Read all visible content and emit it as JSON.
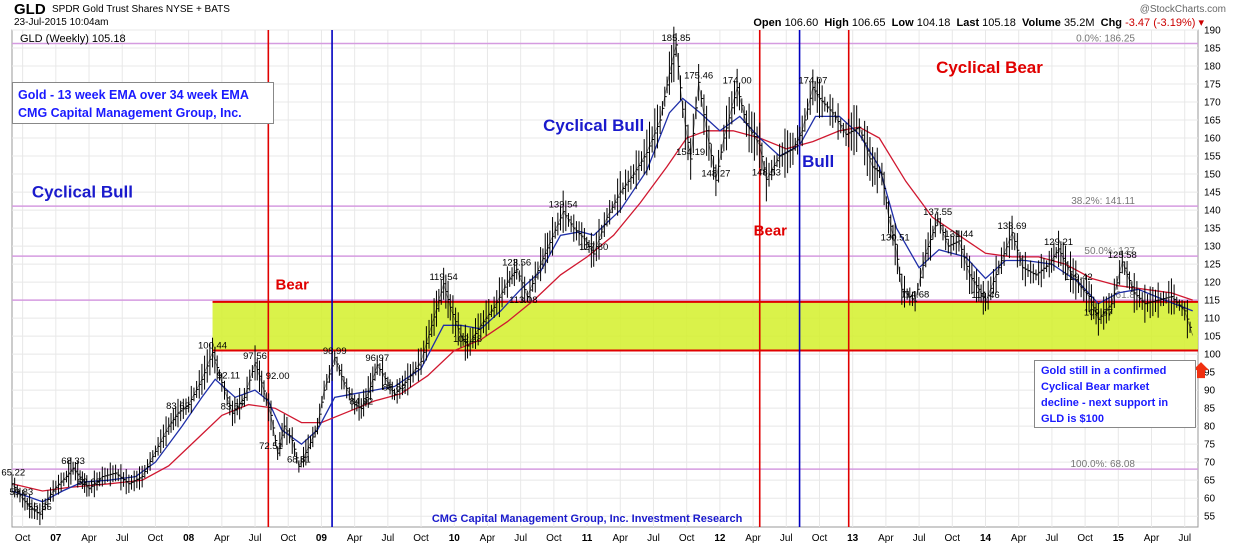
{
  "header": {
    "ticker": "GLD",
    "company": "SPDR Gold Trust Shares  NYSE + BATS",
    "datetime": "23-Jul-2015 10:04am",
    "watermark": "@StockCharts.com",
    "open_label": "Open",
    "open": "106.60",
    "high_label": "High",
    "high": "106.65",
    "low_label": "Low",
    "low": "104.18",
    "last_label": "Last",
    "last": "105.18",
    "volume_label": "Volume",
    "volume": "35.2M",
    "chg_label": "Chg",
    "chg": "-3.47 (-3.19%)"
  },
  "chart_data": {
    "type": "line",
    "title": "GLD (Weekly) 105.18",
    "ylim": [
      52,
      190
    ],
    "yticks": [
      55,
      60,
      65,
      70,
      75,
      80,
      85,
      90,
      95,
      100,
      105,
      110,
      115,
      120,
      125,
      130,
      135,
      140,
      145,
      150,
      155,
      160,
      165,
      170,
      175,
      180,
      185,
      190
    ],
    "xlim": [
      2006.67,
      2015.6
    ],
    "xticks": [
      {
        "label": "Oct",
        "x": 2006.75
      },
      {
        "label": "07",
        "x": 2007.0
      },
      {
        "label": "Apr",
        "x": 2007.25
      },
      {
        "label": "Jul",
        "x": 2007.5
      },
      {
        "label": "Oct",
        "x": 2007.75
      },
      {
        "label": "08",
        "x": 2008.0
      },
      {
        "label": "Apr",
        "x": 2008.25
      },
      {
        "label": "Jul",
        "x": 2008.5
      },
      {
        "label": "Oct",
        "x": 2008.75
      },
      {
        "label": "09",
        "x": 2009.0
      },
      {
        "label": "Apr",
        "x": 2009.25
      },
      {
        "label": "Jul",
        "x": 2009.5
      },
      {
        "label": "Oct",
        "x": 2009.75
      },
      {
        "label": "10",
        "x": 2010.0
      },
      {
        "label": "Apr",
        "x": 2010.25
      },
      {
        "label": "Jul",
        "x": 2010.5
      },
      {
        "label": "Oct",
        "x": 2010.75
      },
      {
        "label": "11",
        "x": 2011.0
      },
      {
        "label": "Apr",
        "x": 2011.25
      },
      {
        "label": "Jul",
        "x": 2011.5
      },
      {
        "label": "Oct",
        "x": 2011.75
      },
      {
        "label": "12",
        "x": 2012.0
      },
      {
        "label": "Apr",
        "x": 2012.25
      },
      {
        "label": "Jul",
        "x": 2012.5
      },
      {
        "label": "Oct",
        "x": 2012.75
      },
      {
        "label": "13",
        "x": 2013.0
      },
      {
        "label": "Apr",
        "x": 2013.25
      },
      {
        "label": "Jul",
        "x": 2013.5
      },
      {
        "label": "Oct",
        "x": 2013.75
      },
      {
        "label": "14",
        "x": 2014.0
      },
      {
        "label": "Apr",
        "x": 2014.25
      },
      {
        "label": "Jul",
        "x": 2014.5
      },
      {
        "label": "Oct",
        "x": 2014.75
      },
      {
        "label": "15",
        "x": 2015.0
      },
      {
        "label": "Apr",
        "x": 2015.25
      },
      {
        "label": "Jul",
        "x": 2015.5
      }
    ],
    "price": [
      [
        2006.67,
        64
      ],
      [
        2006.75,
        59.83
      ],
      [
        2006.82,
        57
      ],
      [
        2006.88,
        55.55
      ],
      [
        2006.96,
        61
      ],
      [
        2007.0,
        63
      ],
      [
        2007.08,
        66
      ],
      [
        2007.13,
        68.33
      ],
      [
        2007.2,
        65
      ],
      [
        2007.25,
        62.62
      ],
      [
        2007.35,
        66
      ],
      [
        2007.45,
        67
      ],
      [
        2007.55,
        64
      ],
      [
        2007.65,
        66
      ],
      [
        2007.75,
        73
      ],
      [
        2007.85,
        80
      ],
      [
        2007.92,
        83.63
      ],
      [
        2008.0,
        86
      ],
      [
        2008.1,
        93
      ],
      [
        2008.18,
        100.44
      ],
      [
        2008.25,
        92.11
      ],
      [
        2008.33,
        83.57
      ],
      [
        2008.42,
        88
      ],
      [
        2008.5,
        97.56
      ],
      [
        2008.55,
        92
      ],
      [
        2008.62,
        83
      ],
      [
        2008.67,
        72.51
      ],
      [
        2008.72,
        80
      ],
      [
        2008.78,
        76
      ],
      [
        2008.83,
        68.81
      ],
      [
        2008.9,
        74
      ],
      [
        2008.97,
        80
      ],
      [
        2009.02,
        90
      ],
      [
        2009.1,
        98.99
      ],
      [
        2009.17,
        92
      ],
      [
        2009.25,
        86
      ],
      [
        2009.3,
        84.92
      ],
      [
        2009.37,
        91
      ],
      [
        2009.42,
        96.97
      ],
      [
        2009.5,
        92
      ],
      [
        2009.55,
        88.82
      ],
      [
        2009.65,
        93
      ],
      [
        2009.75,
        98
      ],
      [
        2009.83,
        108
      ],
      [
        2009.92,
        119.54
      ],
      [
        2009.97,
        113
      ],
      [
        2010.05,
        105
      ],
      [
        2010.1,
        102.28
      ],
      [
        2010.2,
        108
      ],
      [
        2010.3,
        113
      ],
      [
        2010.4,
        120
      ],
      [
        2010.47,
        123.56
      ],
      [
        2010.55,
        116
      ],
      [
        2010.65,
        125
      ],
      [
        2010.72,
        131
      ],
      [
        2010.82,
        139.54
      ],
      [
        2010.9,
        135
      ],
      [
        2010.98,
        132
      ],
      [
        2011.05,
        127.8
      ],
      [
        2011.15,
        138
      ],
      [
        2011.25,
        145
      ],
      [
        2011.35,
        150
      ],
      [
        2011.45,
        156
      ],
      [
        2011.55,
        165
      ],
      [
        2011.62,
        178
      ],
      [
        2011.67,
        185.85
      ],
      [
        2011.72,
        168
      ],
      [
        2011.78,
        154.19
      ],
      [
        2011.84,
        175.46
      ],
      [
        2011.9,
        162
      ],
      [
        2011.97,
        148.27
      ],
      [
        2012.03,
        160
      ],
      [
        2012.13,
        174
      ],
      [
        2012.2,
        164
      ],
      [
        2012.3,
        158
      ],
      [
        2012.35,
        148.53
      ],
      [
        2012.45,
        155
      ],
      [
        2012.55,
        157
      ],
      [
        2012.62,
        162
      ],
      [
        2012.7,
        174.07
      ],
      [
        2012.75,
        171
      ],
      [
        2012.85,
        167
      ],
      [
        2012.95,
        161
      ],
      [
        2013.05,
        163
      ],
      [
        2013.15,
        152
      ],
      [
        2013.22,
        150
      ],
      [
        2013.27,
        138
      ],
      [
        2013.32,
        130.51
      ],
      [
        2013.37,
        118
      ],
      [
        2013.47,
        114.68
      ],
      [
        2013.55,
        128
      ],
      [
        2013.64,
        137.55
      ],
      [
        2013.72,
        130
      ],
      [
        2013.8,
        131.44
      ],
      [
        2013.88,
        122
      ],
      [
        2013.95,
        118
      ],
      [
        2014.0,
        114.46
      ],
      [
        2014.1,
        124
      ],
      [
        2014.2,
        133.69
      ],
      [
        2014.28,
        124
      ],
      [
        2014.38,
        122
      ],
      [
        2014.48,
        125
      ],
      [
        2014.55,
        129.21
      ],
      [
        2014.62,
        124
      ],
      [
        2014.7,
        119.42
      ],
      [
        2014.78,
        116
      ],
      [
        2014.85,
        109.67
      ],
      [
        2014.95,
        114
      ],
      [
        2015.03,
        125.58
      ],
      [
        2015.12,
        117
      ],
      [
        2015.2,
        114
      ],
      [
        2015.3,
        115
      ],
      [
        2015.4,
        116
      ],
      [
        2015.5,
        112
      ],
      [
        2015.56,
        105.18
      ]
    ],
    "ema13": [
      [
        2006.67,
        62
      ],
      [
        2006.9,
        59
      ],
      [
        2007.05,
        62
      ],
      [
        2007.2,
        64.5
      ],
      [
        2007.4,
        65
      ],
      [
        2007.6,
        66
      ],
      [
        2007.75,
        70
      ],
      [
        2007.95,
        80
      ],
      [
        2008.1,
        88
      ],
      [
        2008.2,
        93
      ],
      [
        2008.35,
        88
      ],
      [
        2008.5,
        90
      ],
      [
        2008.6,
        87
      ],
      [
        2008.7,
        79
      ],
      [
        2008.85,
        75
      ],
      [
        2008.97,
        79
      ],
      [
        2009.1,
        88
      ],
      [
        2009.25,
        89
      ],
      [
        2009.4,
        90
      ],
      [
        2009.55,
        91
      ],
      [
        2009.75,
        96
      ],
      [
        2009.92,
        108
      ],
      [
        2010.05,
        108
      ],
      [
        2010.2,
        107
      ],
      [
        2010.35,
        112
      ],
      [
        2010.5,
        118
      ],
      [
        2010.65,
        123
      ],
      [
        2010.8,
        133
      ],
      [
        2010.95,
        134
      ],
      [
        2011.05,
        133
      ],
      [
        2011.25,
        140
      ],
      [
        2011.45,
        151
      ],
      [
        2011.62,
        167
      ],
      [
        2011.72,
        171
      ],
      [
        2011.85,
        167
      ],
      [
        2012.0,
        162
      ],
      [
        2012.15,
        166
      ],
      [
        2012.3,
        160
      ],
      [
        2012.45,
        155
      ],
      [
        2012.6,
        158
      ],
      [
        2012.72,
        166
      ],
      [
        2012.9,
        166
      ],
      [
        2013.05,
        161
      ],
      [
        2013.2,
        152
      ],
      [
        2013.33,
        135
      ],
      [
        2013.5,
        124
      ],
      [
        2013.65,
        129
      ],
      [
        2013.85,
        127
      ],
      [
        2014.0,
        121
      ],
      [
        2014.15,
        126
      ],
      [
        2014.3,
        126
      ],
      [
        2014.5,
        125
      ],
      [
        2014.7,
        120
      ],
      [
        2014.85,
        114
      ],
      [
        2015.0,
        117
      ],
      [
        2015.15,
        118
      ],
      [
        2015.35,
        115
      ],
      [
        2015.56,
        112
      ]
    ],
    "ema34": [
      [
        2006.67,
        64
      ],
      [
        2006.9,
        62
      ],
      [
        2007.1,
        63
      ],
      [
        2007.4,
        64
      ],
      [
        2007.65,
        65
      ],
      [
        2007.85,
        69
      ],
      [
        2008.05,
        76
      ],
      [
        2008.25,
        83
      ],
      [
        2008.45,
        86
      ],
      [
        2008.65,
        85
      ],
      [
        2008.85,
        81
      ],
      [
        2009.0,
        81
      ],
      [
        2009.2,
        84
      ],
      [
        2009.4,
        87
      ],
      [
        2009.6,
        89
      ],
      [
        2009.8,
        94
      ],
      [
        2010.0,
        101
      ],
      [
        2010.2,
        104
      ],
      [
        2010.4,
        109
      ],
      [
        2010.6,
        115
      ],
      [
        2010.8,
        122
      ],
      [
        2011.0,
        127
      ],
      [
        2011.2,
        133
      ],
      [
        2011.4,
        142
      ],
      [
        2011.6,
        152
      ],
      [
        2011.75,
        160
      ],
      [
        2011.9,
        162
      ],
      [
        2012.1,
        162
      ],
      [
        2012.3,
        160
      ],
      [
        2012.5,
        157
      ],
      [
        2012.7,
        159
      ],
      [
        2012.9,
        162
      ],
      [
        2013.05,
        163
      ],
      [
        2013.2,
        160
      ],
      [
        2013.4,
        148
      ],
      [
        2013.6,
        138
      ],
      [
        2013.8,
        133
      ],
      [
        2014.0,
        128
      ],
      [
        2014.2,
        127
      ],
      [
        2014.4,
        127
      ],
      [
        2014.6,
        125
      ],
      [
        2014.8,
        121
      ],
      [
        2015.0,
        119
      ],
      [
        2015.2,
        118
      ],
      [
        2015.4,
        117
      ],
      [
        2015.56,
        115
      ]
    ],
    "price_labels": [
      {
        "text": "65.22",
        "x": 2006.68,
        "y": 65.22
      },
      {
        "text": "59.83",
        "x": 2006.74,
        "y": 59.83
      },
      {
        "text": "55.55",
        "x": 2006.88,
        "y": 55.55
      },
      {
        "text": "68.33",
        "x": 2007.13,
        "y": 68.33
      },
      {
        "text": "62.62",
        "x": 2007.25,
        "y": 62.62
      },
      {
        "text": "83.63",
        "x": 2007.92,
        "y": 83.63
      },
      {
        "text": "100.44",
        "x": 2008.18,
        "y": 100.44
      },
      {
        "text": "92.11",
        "x": 2008.3,
        "y": 92.11
      },
      {
        "text": "83.57",
        "x": 2008.33,
        "y": 83.57
      },
      {
        "text": "97.56",
        "x": 2008.5,
        "y": 97.56
      },
      {
        "text": "92.00",
        "x": 2008.67,
        "y": 92.0
      },
      {
        "text": "72.51",
        "x": 2008.62,
        "y": 72.51
      },
      {
        "text": "68.81",
        "x": 2008.83,
        "y": 68.81
      },
      {
        "text": "98.99",
        "x": 2009.1,
        "y": 98.99
      },
      {
        "text": "96.97",
        "x": 2009.42,
        "y": 96.97
      },
      {
        "text": "84.92",
        "x": 2009.3,
        "y": 84.92
      },
      {
        "text": "88.82",
        "x": 2009.55,
        "y": 88.82
      },
      {
        "text": "119.54",
        "x": 2009.92,
        "y": 119.54
      },
      {
        "text": "102.28",
        "x": 2010.1,
        "y": 102.28
      },
      {
        "text": "113.08",
        "x": 2010.52,
        "y": 113.08
      },
      {
        "text": "123.56",
        "x": 2010.47,
        "y": 123.56
      },
      {
        "text": "139.54",
        "x": 2010.82,
        "y": 139.54
      },
      {
        "text": "127.80",
        "x": 2011.05,
        "y": 127.8
      },
      {
        "text": "185.85",
        "x": 2011.67,
        "y": 185.85
      },
      {
        "text": "175.46",
        "x": 2011.84,
        "y": 175.46
      },
      {
        "text": "154.19",
        "x": 2011.78,
        "y": 154.19
      },
      {
        "text": "148.27",
        "x": 2011.97,
        "y": 148.27
      },
      {
        "text": "174.00",
        "x": 2012.13,
        "y": 174.0
      },
      {
        "text": "148.53",
        "x": 2012.35,
        "y": 148.53
      },
      {
        "text": "174.07",
        "x": 2012.7,
        "y": 174.07
      },
      {
        "text": "130.51",
        "x": 2013.32,
        "y": 130.51
      },
      {
        "text": "114.68",
        "x": 2013.47,
        "y": 114.68
      },
      {
        "text": "137.55",
        "x": 2013.64,
        "y": 137.55
      },
      {
        "text": "131.44",
        "x": 2013.8,
        "y": 131.44
      },
      {
        "text": "114.46",
        "x": 2014.0,
        "y": 114.46
      },
      {
        "text": "133.69",
        "x": 2014.2,
        "y": 133.69
      },
      {
        "text": "129.21",
        "x": 2014.55,
        "y": 129.21
      },
      {
        "text": "119.42",
        "x": 2014.7,
        "y": 119.42
      },
      {
        "text": "109.67",
        "x": 2014.85,
        "y": 109.67
      },
      {
        "text": "125.58",
        "x": 2015.03,
        "y": 125.58
      }
    ],
    "fib_levels": [
      {
        "label": "0.0%: 186.25",
        "value": 186.25
      },
      {
        "label": "38.2%: 141.11",
        "value": 141.11
      },
      {
        "label": "50.0%: 127",
        "value": 127.2
      },
      {
        "label": "61.8",
        "value": 115
      },
      {
        "label": "100.0%: 68.08",
        "value": 68.08
      }
    ],
    "support_zone": {
      "from": 2008.18,
      "to": 2015.6,
      "low": 101,
      "high": 114.5
    },
    "vertical_lines": [
      {
        "x": 2008.6,
        "color": "#e00000"
      },
      {
        "x": 2009.08,
        "color": "#0000c0"
      },
      {
        "x": 2012.3,
        "color": "#e00000"
      },
      {
        "x": 2012.6,
        "color": "#0000c0"
      },
      {
        "x": 2012.97,
        "color": "#e00000"
      }
    ],
    "annotations": [
      {
        "text": "Cyclical Bull",
        "x": 2007.2,
        "y": 143.5,
        "color": "#1a1acc",
        "size": 17
      },
      {
        "text": "Bear",
        "x": 2008.78,
        "y": 118,
        "color": "#e00000",
        "size": 15
      },
      {
        "text": "Cyclical Bull",
        "x": 2011.05,
        "y": 162,
        "color": "#1a1acc",
        "size": 17
      },
      {
        "text": "Bear",
        "x": 2012.38,
        "y": 133,
        "color": "#e00000",
        "size": 15
      },
      {
        "text": "Bull",
        "x": 2012.74,
        "y": 152,
        "color": "#1a1acc",
        "size": 17
      },
      {
        "text": "Cyclical Bear",
        "x": 2014.03,
        "y": 178,
        "color": "#e00000",
        "size": 17
      }
    ],
    "bottom_caption": "CMG Capital Management Group, Inc. Investment Research"
  },
  "colors": {
    "price": "#000000",
    "ema13": "#1f2fa8",
    "ema34": "#d01830",
    "fib": "#d59be0",
    "zone": "#d4f02a",
    "zone_line": "#e00000",
    "grid": "#e8e8e8",
    "arrow": "#f03010"
  },
  "info_box": {
    "line1": "Gold - 13 week EMA over 34 week EMA",
    "line2": "CMG Capital Management Group, Inc."
  },
  "note_box": {
    "line1": "Gold still in a confirmed",
    "line2": "Cyclical Bear market",
    "line3": "decline - next support in",
    "line4": "GLD is $100"
  }
}
